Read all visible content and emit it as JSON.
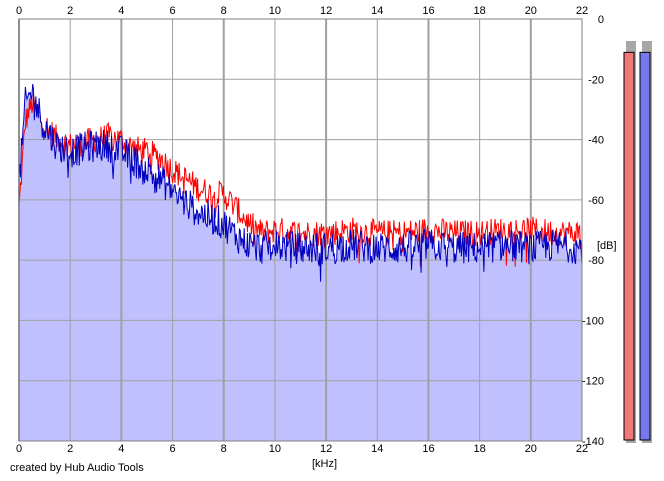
{
  "chart_data": {
    "type": "area",
    "xlabel": "[kHz]",
    "ylabel": "[dB]",
    "xlim": [
      0,
      22
    ],
    "ylim": [
      -140,
      0
    ],
    "x_ticks": [
      0,
      2,
      4,
      6,
      8,
      10,
      12,
      14,
      16,
      18,
      20,
      22
    ],
    "y_ticks": [
      0,
      -20,
      -40,
      -60,
      -80,
      -100,
      -120,
      -140
    ],
    "grid": true,
    "series": [
      {
        "color": "#ff0000",
        "x": [
          0,
          0.25,
          0.5,
          0.75,
          1,
          1.5,
          2,
          2.5,
          3,
          3.5,
          4,
          4.5,
          5,
          5.5,
          6,
          6.5,
          7,
          7.5,
          8,
          8.5,
          9,
          9.5,
          10,
          11,
          12,
          13,
          14,
          15,
          16,
          17,
          18,
          19,
          20,
          21,
          22
        ],
        "values": [
          -63,
          -34,
          -28,
          -32,
          -35,
          -40,
          -42,
          -41,
          -40,
          -39,
          -40,
          -43,
          -44,
          -46,
          -50,
          -53,
          -56,
          -58,
          -58,
          -63,
          -68,
          -71,
          -70,
          -71,
          -71,
          -70,
          -71,
          -71,
          -70,
          -71,
          -71,
          -70,
          -70,
          -71,
          -71
        ]
      },
      {
        "color": "#0000c0",
        "x": [
          0,
          0.25,
          0.5,
          0.75,
          1,
          1.5,
          2,
          2.5,
          3,
          3.5,
          4,
          4.5,
          5,
          5.5,
          6,
          6.5,
          7,
          7.5,
          8,
          8.5,
          9,
          9.5,
          10,
          11,
          12,
          13,
          14,
          15,
          16,
          17,
          18,
          19,
          20,
          21,
          22
        ],
        "values": [
          -55,
          -28,
          -24,
          -30,
          -36,
          -42,
          -44,
          -43,
          -42,
          -42,
          -44,
          -47,
          -50,
          -53,
          -57,
          -61,
          -64,
          -66,
          -68,
          -72,
          -75,
          -76,
          -75,
          -76,
          -76,
          -75,
          -76,
          -76,
          -75,
          -76,
          -76,
          -75,
          -76,
          -75,
          -76
        ]
      }
    ],
    "area_fill": "#c0c0ff",
    "level_meters": [
      {
        "color": "#f07878",
        "value": -5
      },
      {
        "color": "#7878ee",
        "value": -5
      }
    ]
  },
  "credit": "created by Hub Audio Tools"
}
